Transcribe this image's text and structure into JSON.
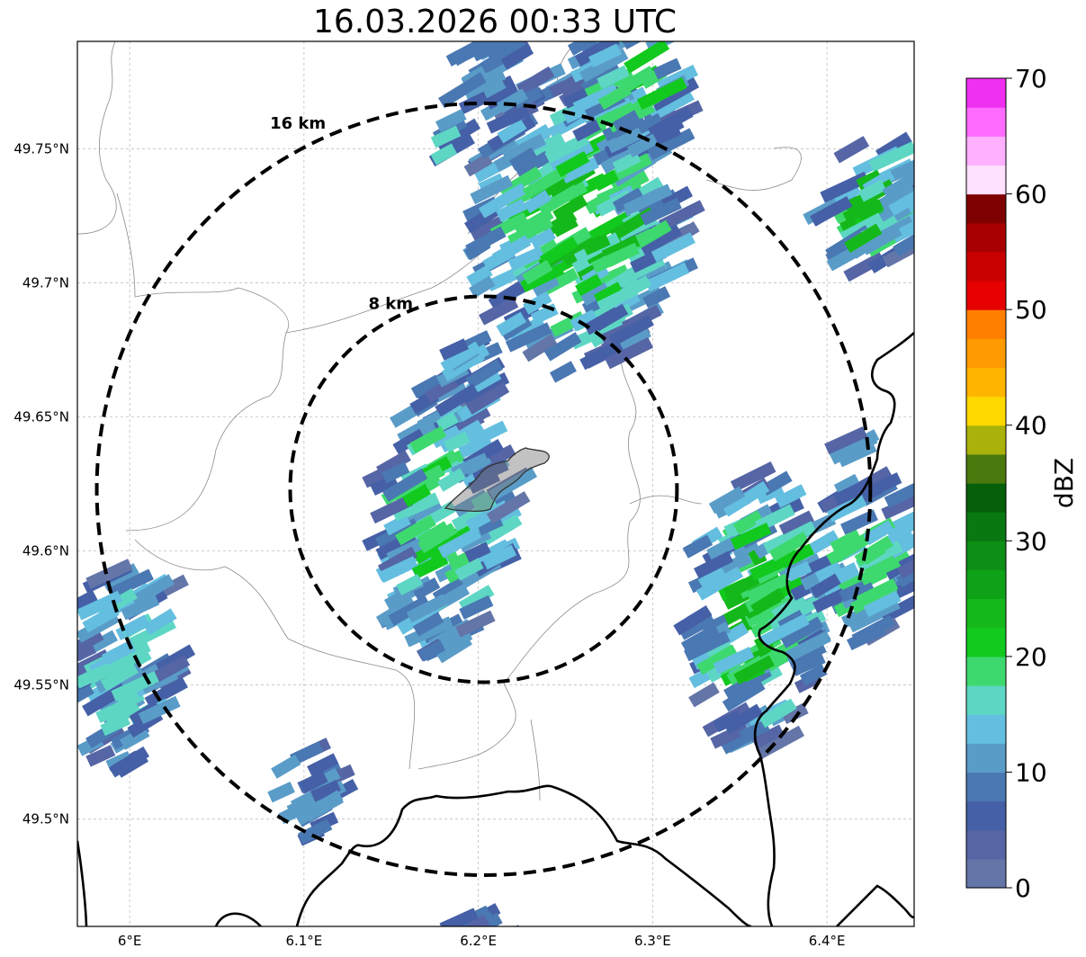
{
  "title": "16.03.2026 00:33 UTC",
  "map": {
    "lon_range": [
      5.97,
      6.45
    ],
    "lat_range": [
      49.46,
      49.79
    ],
    "lat_ticks": [
      {
        "value": 49.75,
        "label": "49.75°N"
      },
      {
        "value": 49.7,
        "label": "49.7°N"
      },
      {
        "value": 49.65,
        "label": "49.65°N"
      },
      {
        "value": 49.6,
        "label": "49.6°N"
      },
      {
        "value": 49.55,
        "label": "49.55°N"
      },
      {
        "value": 49.5,
        "label": "49.5°N"
      }
    ],
    "lon_ticks": [
      {
        "value": 6.0,
        "label": "6°E"
      },
      {
        "value": 6.1,
        "label": "6.1°E"
      },
      {
        "value": 6.2,
        "label": "6.2°E"
      },
      {
        "value": 6.3,
        "label": "6.3°E"
      },
      {
        "value": 6.4,
        "label": "6.4°E"
      }
    ],
    "radar_center": {
      "lon": 6.203,
      "lat": 49.623
    },
    "rings": [
      {
        "radius_km": 8,
        "label": "8 km"
      },
      {
        "radius_km": 16,
        "label": "16 km"
      }
    ]
  },
  "colorbar": {
    "label": "dBZ",
    "min": 0,
    "max": 70,
    "ticks": [
      "0",
      "10",
      "20",
      "30",
      "40",
      "50",
      "60",
      "70"
    ],
    "colors": [
      "#6475a8",
      "#5565a5",
      "#4560a6",
      "#4a78b2",
      "#5a9cc8",
      "#64bedf",
      "#5ed6c4",
      "#3dd96e",
      "#12c91e",
      "#15b81a",
      "#0fa218",
      "#0d8e15",
      "#0a7810",
      "#06600a",
      "#4a7a0e",
      "#aab10a",
      "#ffd800",
      "#ffb500",
      "#ff9b00",
      "#ff7f00",
      "#e60000",
      "#c90000",
      "#a80000",
      "#7e0000",
      "#ffe0ff",
      "#ffb0ff",
      "#ff6aff",
      "#f030f0"
    ]
  }
}
